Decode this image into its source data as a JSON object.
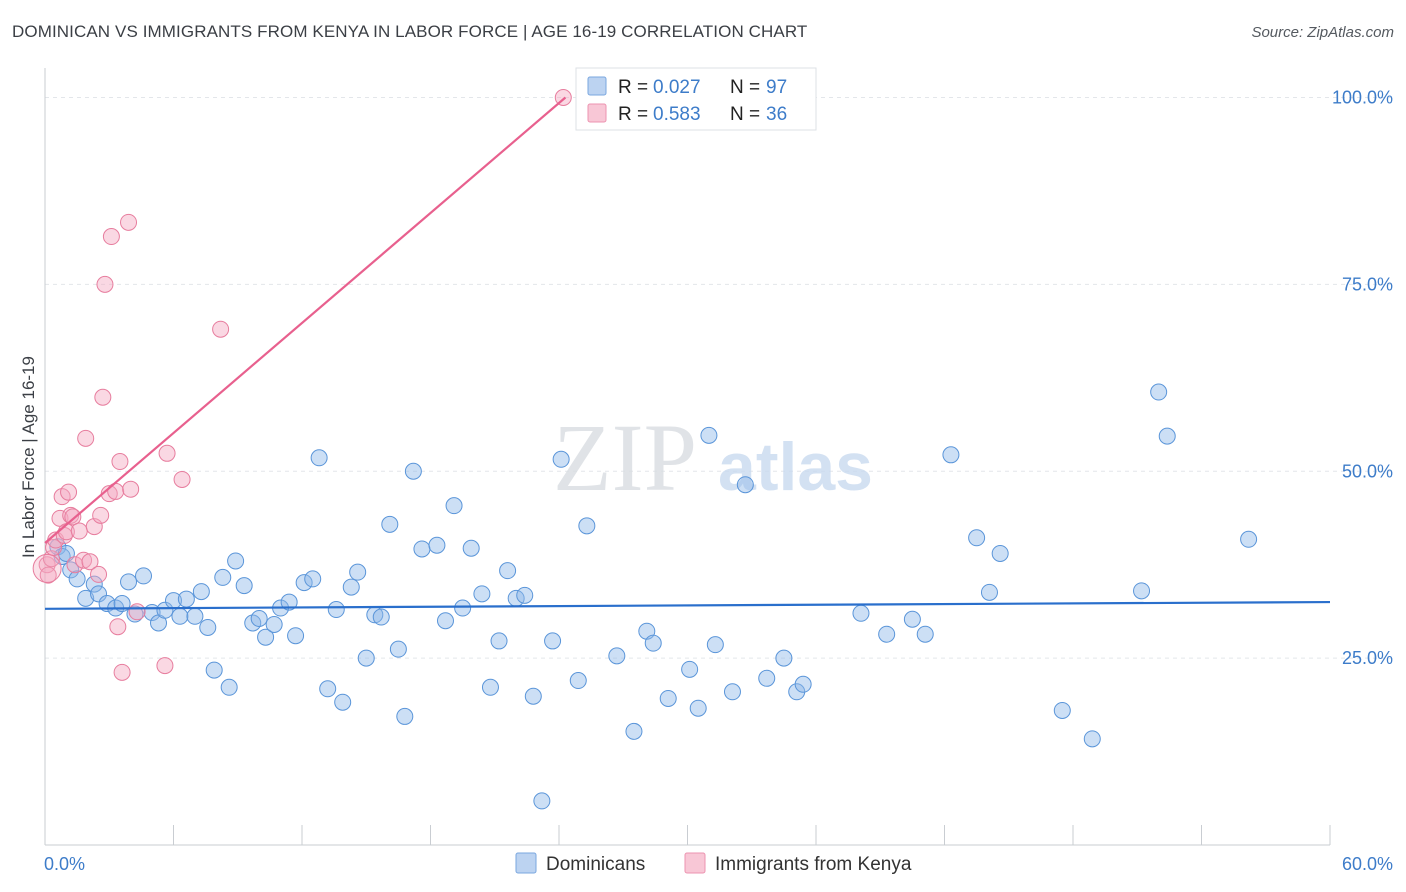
{
  "header": {
    "title": "DOMINICAN VS IMMIGRANTS FROM KENYA IN LABOR FORCE | AGE 16-19 CORRELATION CHART",
    "source": "Source: ZipAtlas.com"
  },
  "watermark": {
    "zip": "ZIP",
    "atlas": "atlas"
  },
  "chart_data": {
    "type": "scatter",
    "title": "DOMINICAN VS IMMIGRANTS FROM KENYA IN LABOR FORCE | AGE 16-19 CORRELATION CHART",
    "ylabel": "In Labor Force | Age 16-19",
    "xlabel": "",
    "xlim": [
      0,
      60
    ],
    "ylim": [
      0,
      100
    ],
    "x_tick_labels": {
      "min": "0.0%",
      "max": "60.0%"
    },
    "y_ticks": [
      {
        "value": 25,
        "label": "25.0%"
      },
      {
        "value": 50,
        "label": "50.0%"
      },
      {
        "value": 75,
        "label": "75.0%"
      },
      {
        "value": 100,
        "label": "100.0%"
      }
    ],
    "legend_box": {
      "rows": [
        {
          "r_label": "R =",
          "r_value": "0.027",
          "n_label": "N =",
          "n_value": "97"
        },
        {
          "r_label": "R =",
          "r_value": "0.583",
          "n_label": "N =",
          "n_value": "36"
        }
      ]
    },
    "series": [
      {
        "name": "Dominicans",
        "color": "#8fb8e8",
        "stroke": "#5a95d9",
        "trend": {
          "x0": 0,
          "y0": 31.6,
          "x1": 60,
          "y1": 32.5,
          "color": "#2a6fcc"
        },
        "points": [
          [
            0.6,
            39.9
          ],
          [
            0.8,
            38.6
          ],
          [
            1.0,
            39.0
          ],
          [
            1.2,
            36.8
          ],
          [
            1.5,
            35.6
          ],
          [
            1.9,
            33.0
          ],
          [
            2.3,
            34.9
          ],
          [
            2.5,
            33.6
          ],
          [
            2.9,
            32.3
          ],
          [
            3.3,
            31.7
          ],
          [
            3.6,
            32.3
          ],
          [
            3.9,
            35.2
          ],
          [
            4.2,
            30.9
          ],
          [
            4.6,
            36.0
          ],
          [
            5.0,
            31.1
          ],
          [
            5.3,
            29.7
          ],
          [
            5.6,
            31.4
          ],
          [
            6.0,
            32.7
          ],
          [
            6.3,
            30.6
          ],
          [
            6.6,
            32.9
          ],
          [
            7.0,
            30.6
          ],
          [
            7.3,
            33.9
          ],
          [
            7.6,
            29.1
          ],
          [
            7.9,
            23.4
          ],
          [
            8.3,
            35.8
          ],
          [
            8.6,
            21.1
          ],
          [
            8.9,
            38.0
          ],
          [
            9.3,
            34.7
          ],
          [
            9.7,
            29.7
          ],
          [
            10.0,
            30.3
          ],
          [
            10.3,
            27.8
          ],
          [
            10.7,
            29.5
          ],
          [
            11.0,
            31.7
          ],
          [
            11.4,
            32.5
          ],
          [
            11.7,
            28.0
          ],
          [
            12.1,
            35.1
          ],
          [
            12.5,
            35.6
          ],
          [
            12.8,
            51.8
          ],
          [
            13.2,
            20.9
          ],
          [
            13.6,
            31.5
          ],
          [
            13.9,
            19.1
          ],
          [
            14.3,
            34.5
          ],
          [
            14.6,
            36.5
          ],
          [
            15.0,
            25.0
          ],
          [
            15.4,
            30.8
          ],
          [
            15.7,
            30.5
          ],
          [
            16.1,
            42.9
          ],
          [
            16.5,
            26.2
          ],
          [
            16.8,
            17.2
          ],
          [
            17.2,
            50.0
          ],
          [
            17.6,
            39.6
          ],
          [
            18.3,
            40.1
          ],
          [
            18.7,
            30.0
          ],
          [
            19.1,
            45.4
          ],
          [
            19.5,
            31.7
          ],
          [
            19.9,
            39.7
          ],
          [
            20.4,
            33.6
          ],
          [
            20.8,
            21.1
          ],
          [
            21.2,
            27.3
          ],
          [
            21.6,
            36.7
          ],
          [
            22.0,
            33.0
          ],
          [
            22.4,
            33.4
          ],
          [
            22.8,
            19.9
          ],
          [
            23.2,
            5.9
          ],
          [
            23.7,
            27.3
          ],
          [
            24.1,
            51.6
          ],
          [
            24.9,
            22.0
          ],
          [
            25.3,
            42.7
          ],
          [
            26.7,
            25.3
          ],
          [
            27.5,
            15.2
          ],
          [
            28.1,
            28.6
          ],
          [
            29.1,
            19.6
          ],
          [
            30.1,
            23.5
          ],
          [
            30.5,
            18.3
          ],
          [
            31.0,
            54.8
          ],
          [
            31.3,
            26.8
          ],
          [
            32.1,
            20.5
          ],
          [
            32.7,
            48.2
          ],
          [
            33.7,
            22.3
          ],
          [
            34.5,
            25.0
          ],
          [
            35.1,
            20.5
          ],
          [
            35.4,
            21.5
          ],
          [
            38.1,
            31.0
          ],
          [
            39.3,
            28.2
          ],
          [
            40.5,
            30.2
          ],
          [
            41.1,
            28.2
          ],
          [
            42.3,
            52.2
          ],
          [
            43.5,
            41.1
          ],
          [
            44.1,
            33.8
          ],
          [
            44.6,
            39.0
          ],
          [
            47.5,
            18.0
          ],
          [
            48.9,
            14.2
          ],
          [
            51.2,
            34.0
          ],
          [
            52.0,
            60.6
          ],
          [
            52.4,
            54.7
          ],
          [
            56.2,
            40.9
          ],
          [
            28.4,
            27.0
          ]
        ]
      },
      {
        "name": "Immigrants from Kenya",
        "color": "#f4a9c0",
        "stroke": "#e77d9e",
        "trend": {
          "x0": 0,
          "y0": 40.4,
          "x1": 24.3,
          "y1": 100,
          "color": "#e8608e"
        },
        "points": [
          [
            0.1,
            37.5
          ],
          [
            0.15,
            36.1
          ],
          [
            0.3,
            38.3
          ],
          [
            0.4,
            39.8
          ],
          [
            0.5,
            40.8
          ],
          [
            0.7,
            43.7
          ],
          [
            0.8,
            46.6
          ],
          [
            0.9,
            41.4
          ],
          [
            1.0,
            41.9
          ],
          [
            1.1,
            47.2
          ],
          [
            1.2,
            44.1
          ],
          [
            1.3,
            43.9
          ],
          [
            1.4,
            37.5
          ],
          [
            1.6,
            42.0
          ],
          [
            1.8,
            38.1
          ],
          [
            1.9,
            54.4
          ],
          [
            2.1,
            37.9
          ],
          [
            2.3,
            42.6
          ],
          [
            2.5,
            36.2
          ],
          [
            2.6,
            44.1
          ],
          [
            2.7,
            59.9
          ],
          [
            2.8,
            75.0
          ],
          [
            3.0,
            47.0
          ],
          [
            3.1,
            81.4
          ],
          [
            3.3,
            47.3
          ],
          [
            3.4,
            29.2
          ],
          [
            3.5,
            51.3
          ],
          [
            3.6,
            23.1
          ],
          [
            3.9,
            83.3
          ],
          [
            4.0,
            47.6
          ],
          [
            4.3,
            31.2
          ],
          [
            5.6,
            24.0
          ],
          [
            5.7,
            52.4
          ],
          [
            6.4,
            48.9
          ],
          [
            8.2,
            69.0
          ],
          [
            24.2,
            100.0
          ]
        ]
      }
    ]
  },
  "bottom_legend": [
    {
      "label": "Dominicans"
    },
    {
      "label": "Immigrants from Kenya"
    }
  ]
}
